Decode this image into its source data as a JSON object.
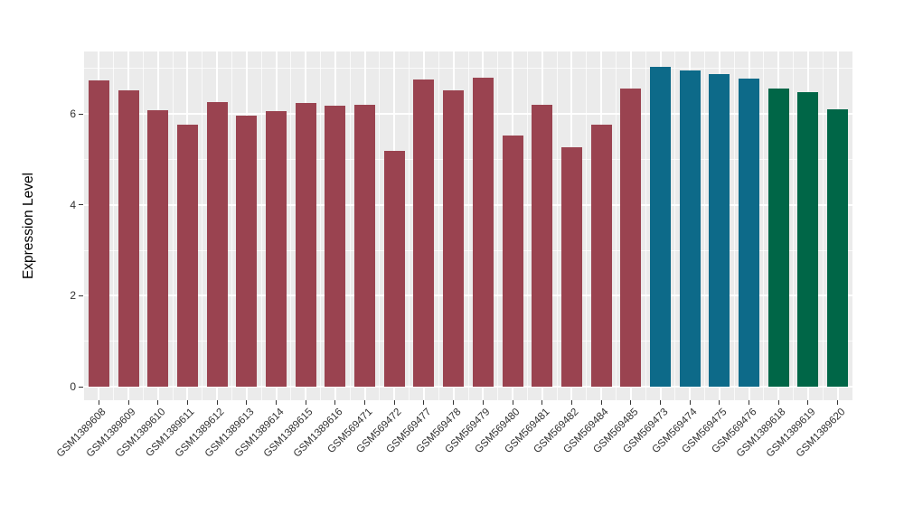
{
  "chart_data": {
    "type": "bar",
    "title": "",
    "xlabel": "",
    "ylabel": "Expression Level",
    "ylim": [
      0,
      7.37
    ],
    "yticks": [
      0,
      2,
      4,
      6
    ],
    "yticks_minor": [
      1,
      3,
      5,
      7
    ],
    "grid": true,
    "legend_position": "none",
    "panel_bg": "#EBEBEB",
    "grid_color": "#FFFFFF",
    "axis_text_color": "#303030",
    "tick_mark_color": "#333333",
    "group_colors": {
      "group1": "#9A4350",
      "group2": "#0D6A89",
      "group3": "#006647"
    },
    "categories": [
      "GSM1389608",
      "GSM1389609",
      "GSM1389610",
      "GSM1389611",
      "GSM1389612",
      "GSM1389613",
      "GSM1389614",
      "GSM1389615",
      "GSM1389616",
      "GSM569471",
      "GSM569472",
      "GSM569477",
      "GSM569478",
      "GSM569479",
      "GSM569480",
      "GSM569481",
      "GSM569482",
      "GSM569484",
      "GSM569485",
      "GSM569473",
      "GSM569474",
      "GSM569475",
      "GSM569476",
      "GSM1389618",
      "GSM1389619",
      "GSM1389620"
    ],
    "values": [
      6.74,
      6.51,
      6.07,
      5.77,
      6.26,
      5.97,
      6.05,
      6.24,
      6.17,
      6.19,
      5.18,
      6.75,
      6.52,
      6.79,
      5.52,
      6.2,
      5.27,
      5.77,
      6.56,
      7.03,
      6.96,
      6.88,
      6.78,
      6.55,
      6.47,
      6.09
    ],
    "bar_colors": [
      "#9A4350",
      "#9A4350",
      "#9A4350",
      "#9A4350",
      "#9A4350",
      "#9A4350",
      "#9A4350",
      "#9A4350",
      "#9A4350",
      "#9A4350",
      "#9A4350",
      "#9A4350",
      "#9A4350",
      "#9A4350",
      "#9A4350",
      "#9A4350",
      "#9A4350",
      "#9A4350",
      "#9A4350",
      "#0D6A89",
      "#0D6A89",
      "#0D6A89",
      "#0D6A89",
      "#006647",
      "#006647",
      "#006647"
    ]
  }
}
